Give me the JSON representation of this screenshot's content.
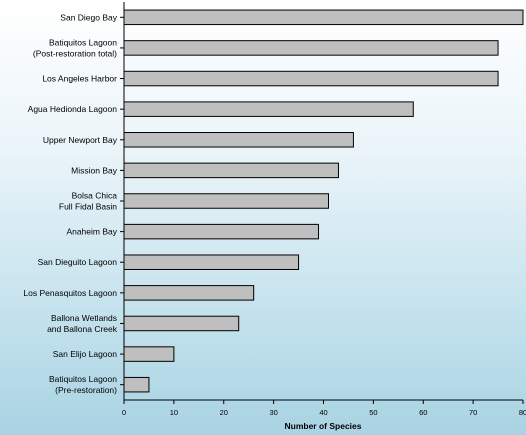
{
  "chart_data": {
    "type": "bar",
    "orientation": "horizontal",
    "categories": [
      [
        "San Diego Bay"
      ],
      [
        "Batiquitos Lagoon",
        "(Post-restoration total)"
      ],
      [
        "Los Angeles Harbor"
      ],
      [
        "Agua Hedionda Lagoon"
      ],
      [
        "Upper Newport Bay"
      ],
      [
        "Mission Bay"
      ],
      [
        "Bolsa Chica",
        "Full Fidal Basin"
      ],
      [
        "Anaheim Bay"
      ],
      [
        "San Dieguito Lagoon"
      ],
      [
        "Los Penasquitos Lagoon"
      ],
      [
        "Ballona Wetlands",
        "and Ballona Creek"
      ],
      [
        "San Elijo Lagoon"
      ],
      [
        "Batiquitos Lagoon",
        "(Pre-restoration)"
      ]
    ],
    "values": [
      80,
      75,
      75,
      58,
      46,
      43,
      41,
      39,
      35,
      26,
      23,
      10,
      5
    ],
    "xlabel": "Number of Species",
    "ylabel": "",
    "xlim": [
      0,
      80
    ],
    "xticks": [
      "0",
      "10",
      "20",
      "30",
      "40",
      "50",
      "60",
      "70",
      "80"
    ],
    "bar_color": "#bfbfbf",
    "bar_edge_color": "#000000",
    "grid": false,
    "legend": "none"
  }
}
